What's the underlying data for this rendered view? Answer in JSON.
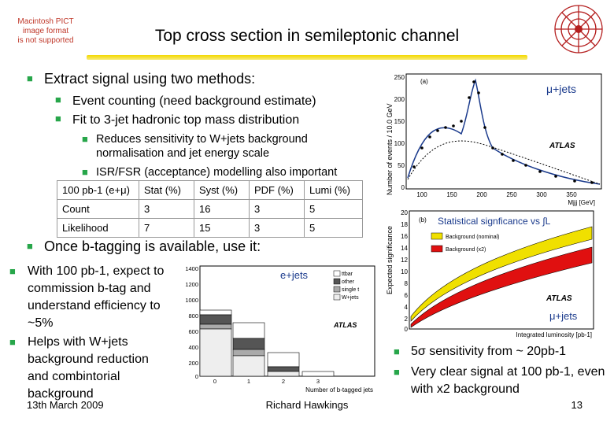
{
  "logo_text": [
    "Macintosh PICT",
    "image format",
    "is not supported"
  ],
  "title": "Top cross section in semileptonic channel",
  "bullets": {
    "b1": "Extract signal using two methods:",
    "b1a": "Event counting (need background estimate)",
    "b1b": "Fit to 3-jet hadronic top mass distribution",
    "b1c1": "Reduces sensitivity to W+jets background normalisation and jet energy scale",
    "b1c2": "ISR/FSR (acceptance) modelling also important",
    "b2": "Once b-tagging is available, use it:",
    "b3": "With 100 pb-1, expect to commission b-tag and understand efficiency to ~5%",
    "b4": "Helps with W+jets background reduction and combintorial background",
    "r1": "5σ sensitivity from ~ 20pb-1",
    "r2": "Very clear signal at 100 pb-1, even with x2 background"
  },
  "table": {
    "header": [
      "100 pb-1 (e+μ)",
      "Stat (%)",
      "Syst (%)",
      "PDF (%)",
      "Lumi (%)"
    ],
    "rows": [
      [
        "Count",
        "3",
        "16",
        "3",
        "5"
      ],
      [
        "Likelihood",
        "7",
        "15",
        "3",
        "5"
      ]
    ]
  },
  "plot_mass": {
    "label": "μ+jets",
    "panel": "(a)",
    "atlas": "ATLAS",
    "ylabel": "Number of events / 10.0 GeV",
    "xlabel": "Mjjj [GeV]",
    "yticks": [
      "250",
      "200",
      "150",
      "100",
      "50",
      "0"
    ],
    "xticks": [
      "100",
      "150",
      "200",
      "250",
      "300",
      "350"
    ]
  },
  "plot_sig": {
    "annotation": "Statistical signficance vs ∫L",
    "label": "μ+jets",
    "panel": "(b)",
    "atlas": "ATLAS",
    "ylabel": "Expected significance",
    "xlabel": "Integrated luminosity [pb-1]",
    "legend": [
      "Background (nominal)",
      "Background (x2)"
    ],
    "yticks": [
      "20",
      "18",
      "16",
      "14",
      "12",
      "10",
      "8",
      "6",
      "4",
      "2",
      "0"
    ],
    "colors": {
      "nominal": "#f0e000",
      "x2": "#e01010"
    }
  },
  "plot_btag": {
    "label": "e+jets",
    "atlas": "ATLAS",
    "xlabel": "Number of b-tagged jets",
    "legend": [
      "ttbar",
      "other",
      "single t",
      "W+jets"
    ],
    "yticks": [
      "1400",
      "1200",
      "1000",
      "800",
      "600",
      "400",
      "200",
      "0"
    ],
    "xticks": [
      "0",
      "1",
      "2",
      "3"
    ]
  },
  "footer": {
    "date": "13th March 2009",
    "author": "Richard Hawkings",
    "page": "13"
  }
}
